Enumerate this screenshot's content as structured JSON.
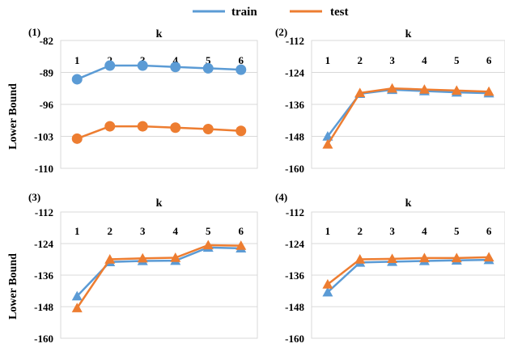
{
  "legend": [
    {
      "label": "train",
      "color": "#5B9BD5"
    },
    {
      "label": "test",
      "color": "#ED7D31"
    }
  ],
  "y_axis_label": "Lower Bound",
  "chart_data": [
    {
      "type": "line",
      "panel_label": "(1)",
      "xlabel": "k",
      "categories": [
        "1",
        "2",
        "3",
        "4",
        "5",
        "6"
      ],
      "ylim": [
        -110,
        -82
      ],
      "yticks": [
        "-82",
        "-89",
        "-96",
        "-103",
        "-110"
      ],
      "marker": "circle",
      "series": [
        {
          "name": "train",
          "color": "#5B9BD5",
          "values": [
            -90.5,
            -87.5,
            -87.5,
            -87.8,
            -88.1,
            -88.4
          ]
        },
        {
          "name": "test",
          "color": "#ED7D31",
          "values": [
            -103.5,
            -100.8,
            -100.8,
            -101.1,
            -101.4,
            -101.8
          ]
        }
      ]
    },
    {
      "type": "line",
      "panel_label": "(2)",
      "xlabel": "k",
      "categories": [
        "1",
        "2",
        "3",
        "4",
        "5",
        "6"
      ],
      "ylim": [
        -160,
        -112
      ],
      "yticks": [
        "-112",
        "-124",
        "-136",
        "-148",
        "-160"
      ],
      "marker": "triangle",
      "series": [
        {
          "name": "train",
          "color": "#5B9BD5",
          "values": [
            -148.0,
            -132.0,
            -130.5,
            -131.0,
            -131.5,
            -131.8
          ]
        },
        {
          "name": "test",
          "color": "#ED7D31",
          "values": [
            -151.0,
            -131.7,
            -130.0,
            -130.4,
            -130.8,
            -131.2
          ]
        }
      ]
    },
    {
      "type": "line",
      "panel_label": "(3)",
      "xlabel": "k",
      "categories": [
        "1",
        "2",
        "3",
        "4",
        "5",
        "6"
      ],
      "ylim": [
        -160,
        -112
      ],
      "yticks": [
        "-112",
        "-124",
        "-136",
        "-148",
        "-160"
      ],
      "marker": "triangle",
      "series": [
        {
          "name": "train",
          "color": "#5B9BD5",
          "values": [
            -144.0,
            -131.0,
            -130.6,
            -130.5,
            -125.5,
            -125.8
          ]
        },
        {
          "name": "test",
          "color": "#ED7D31",
          "values": [
            -148.5,
            -130.0,
            -129.6,
            -129.4,
            -124.6,
            -124.8
          ]
        }
      ]
    },
    {
      "type": "line",
      "panel_label": "(4)",
      "xlabel": "k",
      "categories": [
        "1",
        "2",
        "3",
        "4",
        "5",
        "6"
      ],
      "ylim": [
        -160,
        -112
      ],
      "yticks": [
        "-112",
        "-124",
        "-136",
        "-148",
        "-160"
      ],
      "marker": "triangle",
      "series": [
        {
          "name": "train",
          "color": "#5B9BD5",
          "values": [
            -142.5,
            -131.2,
            -130.9,
            -130.6,
            -130.4,
            -130.2
          ]
        },
        {
          "name": "test",
          "color": "#ED7D31",
          "values": [
            -139.5,
            -130.0,
            -129.8,
            -129.5,
            -129.5,
            -129.2
          ]
        }
      ]
    }
  ]
}
